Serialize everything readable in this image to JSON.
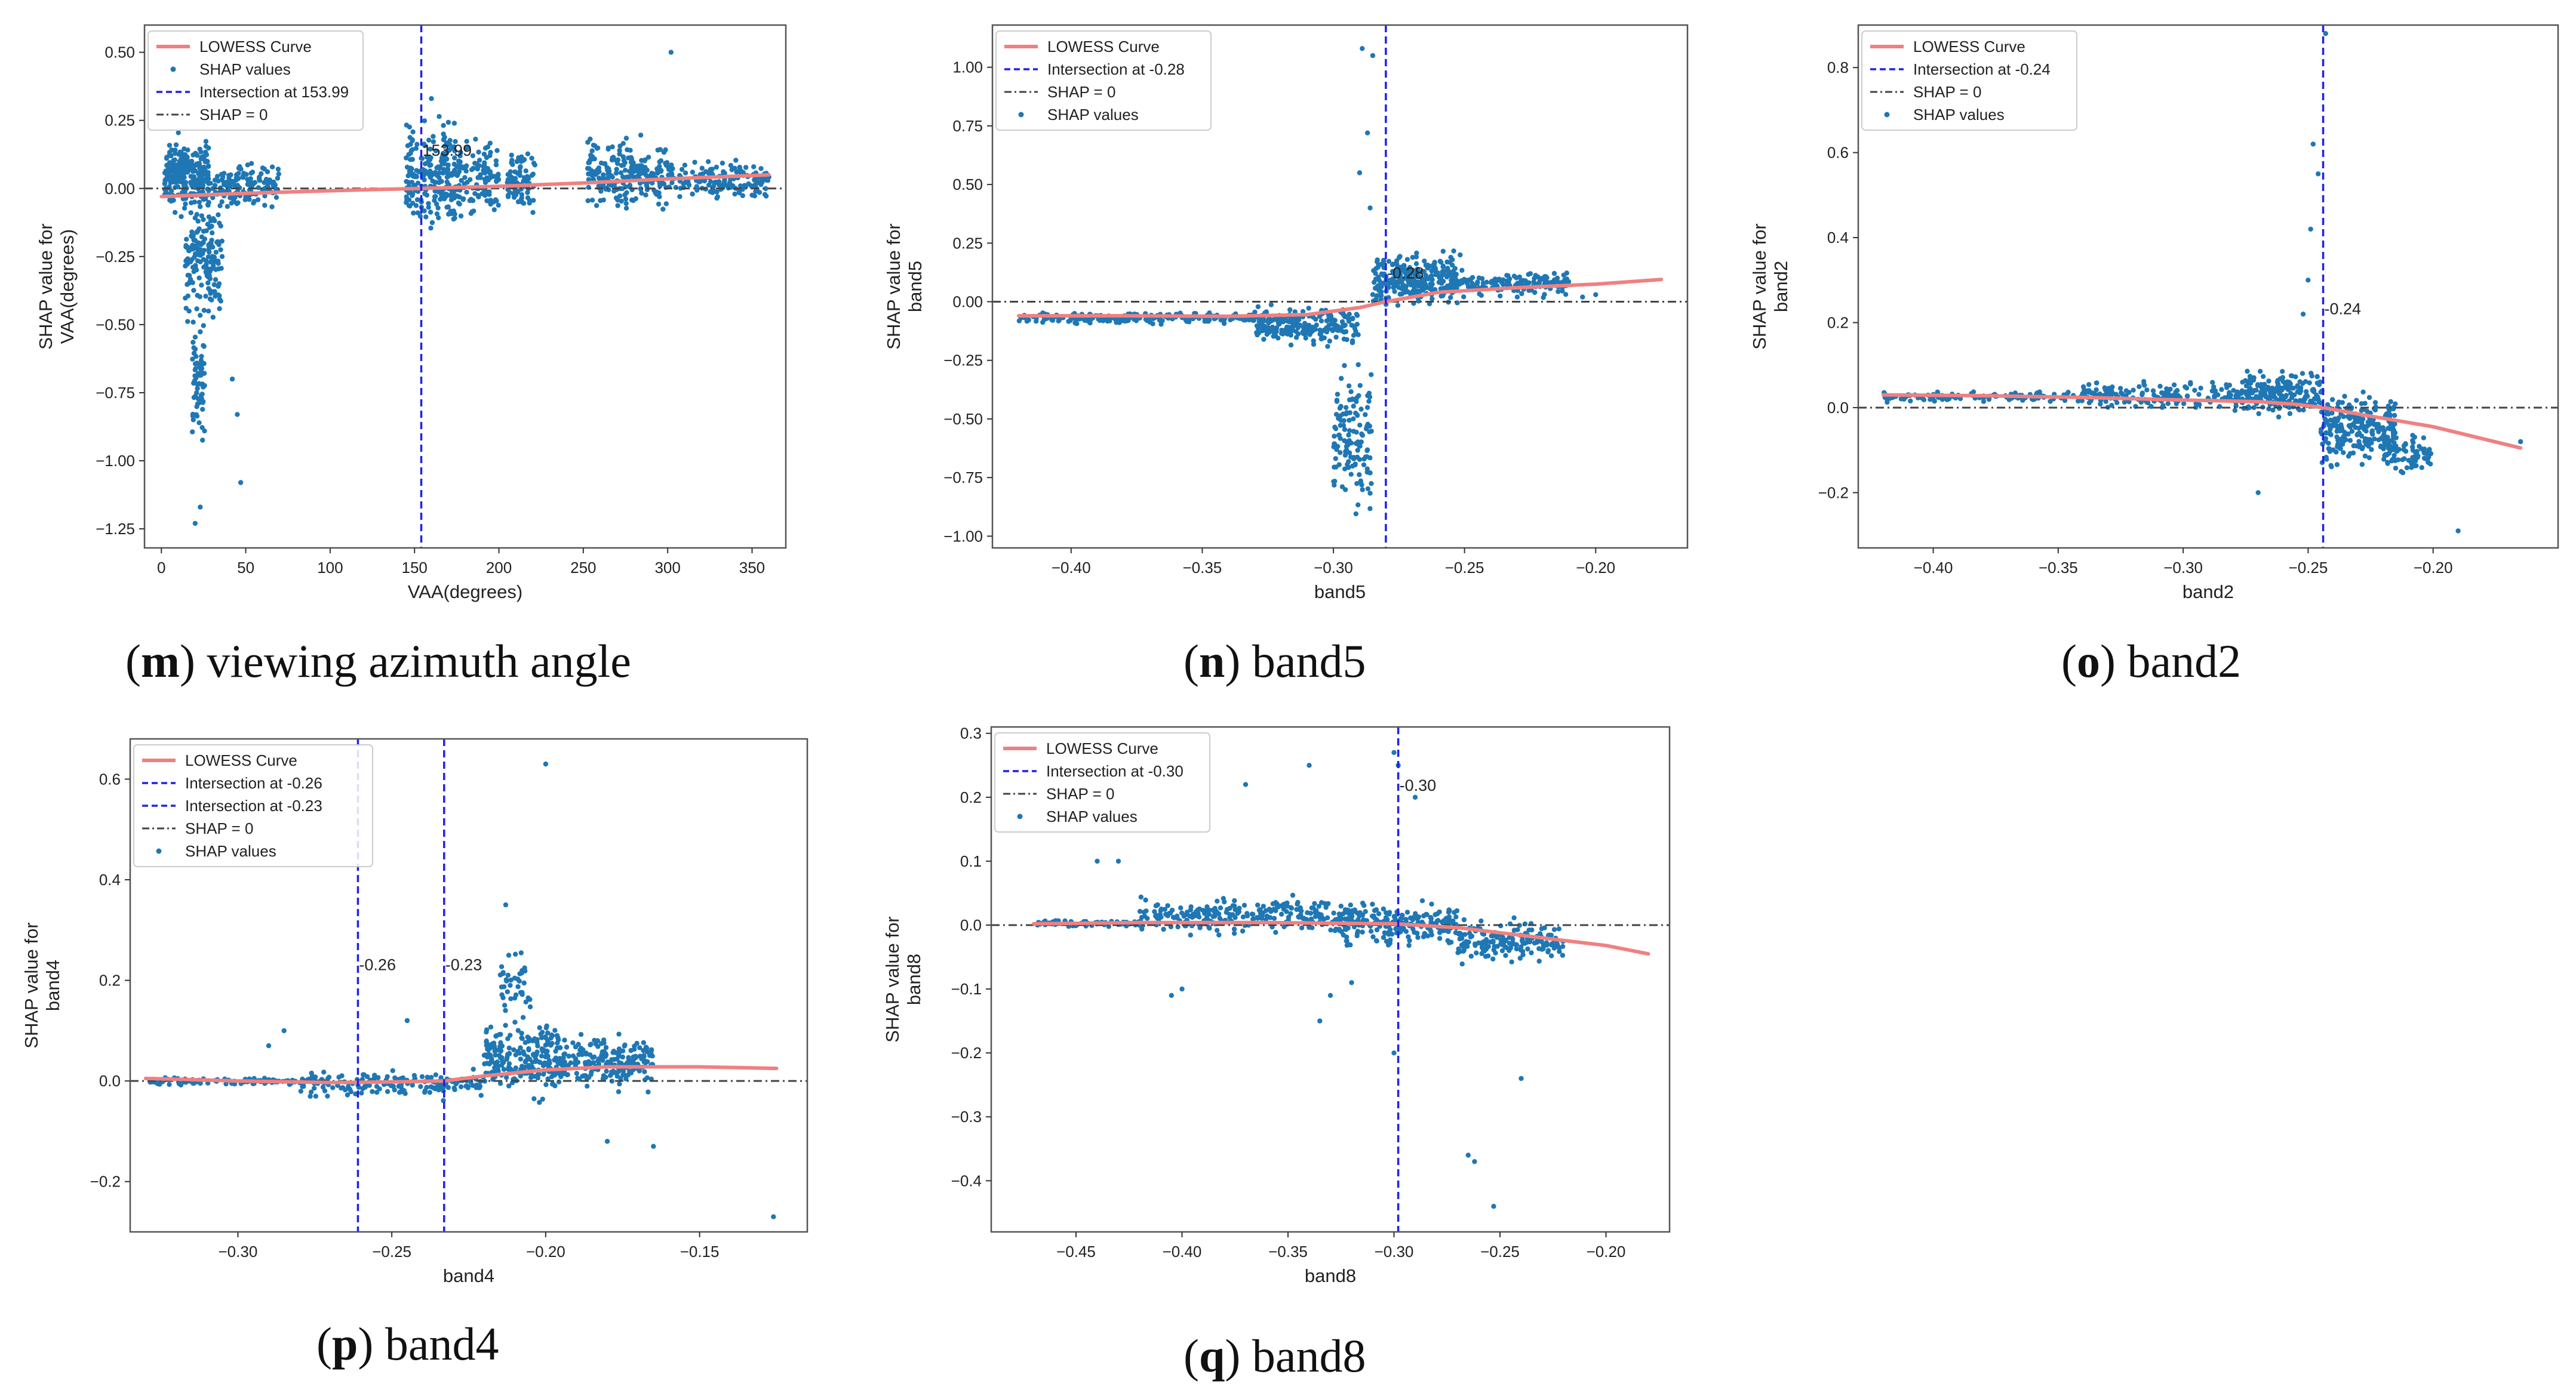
{
  "colors": {
    "points": "#1f77b4",
    "lowess": "#f08080",
    "intersection": "#2020ee",
    "zero_line": "#444444",
    "frame": "#555555"
  },
  "chart_data": [
    {
      "panel": "m",
      "caption_letter": "m",
      "caption_text": ") viewing azimuth angle",
      "type": "scatter",
      "xlabel": "VAA(degrees)",
      "ylabel_lines": [
        "SHAP value for",
        "VAA(degrees)"
      ],
      "xlim": [
        -10,
        370
      ],
      "ylim": [
        -1.32,
        0.6
      ],
      "xticks": [
        0,
        50,
        100,
        150,
        200,
        250,
        300,
        350
      ],
      "xtick_labels": [
        "0",
        "50",
        "100",
        "150",
        "200",
        "250",
        "300",
        "350"
      ],
      "yticks": [
        0.5,
        0.25,
        0.0,
        -0.25,
        -0.5,
        -0.75,
        -1.0,
        -1.25
      ],
      "ytick_labels": [
        "0.50",
        "0.25",
        "0.00",
        "−0.25",
        "−0.50",
        "−0.75",
        "−1.00",
        "−1.25"
      ],
      "legend": [
        {
          "label": "LOWESS Curve",
          "kind": "line"
        },
        {
          "label": "SHAP values",
          "kind": "dot"
        },
        {
          "label": "Intersection at 153.99",
          "kind": "dash"
        },
        {
          "label": "SHAP = 0",
          "kind": "dashdot"
        }
      ],
      "intersections": [
        {
          "x": 153.99,
          "annotation": "153.99",
          "annot_y": 0.12
        }
      ],
      "lowess": {
        "x": [
          0,
          40,
          80,
          120,
          153.99,
          200,
          250,
          300,
          360
        ],
        "y": [
          -0.03,
          -0.02,
          -0.012,
          -0.005,
          0.0,
          0.008,
          0.02,
          0.035,
          0.05
        ]
      },
      "clusters": [
        {
          "xmin": 2,
          "xmax": 28,
          "ymin": -0.12,
          "ymax": 0.22,
          "n": 260
        },
        {
          "xmin": 14,
          "xmax": 36,
          "ymin": -0.55,
          "ymax": 0.05,
          "n": 160
        },
        {
          "xmin": 18,
          "xmax": 26,
          "ymin": -1.0,
          "ymax": -0.4,
          "n": 70
        },
        {
          "xmin": 28,
          "xmax": 70,
          "ymin": -0.1,
          "ymax": 0.12,
          "n": 150
        },
        {
          "xmin": 145,
          "xmax": 175,
          "ymin": -0.22,
          "ymax": 0.3,
          "n": 230
        },
        {
          "xmin": 175,
          "xmax": 200,
          "ymin": -0.15,
          "ymax": 0.22,
          "n": 120
        },
        {
          "xmin": 205,
          "xmax": 222,
          "ymin": -0.12,
          "ymax": 0.18,
          "n": 80
        },
        {
          "xmin": 252,
          "xmax": 300,
          "ymin": -0.12,
          "ymax": 0.22,
          "n": 230
        },
        {
          "xmin": 300,
          "xmax": 360,
          "ymin": -0.05,
          "ymax": 0.12,
          "n": 160
        }
      ],
      "outliers": [
        [
          20,
          -1.23
        ],
        [
          23,
          -1.17
        ],
        [
          47,
          -1.08
        ],
        [
          302,
          0.5
        ],
        [
          36,
          -0.25
        ],
        [
          45,
          -0.83
        ],
        [
          42,
          -0.7
        ],
        [
          160,
          0.33
        ]
      ]
    },
    {
      "panel": "n",
      "caption_letter": "n",
      "caption_text": ") band5",
      "type": "scatter",
      "xlabel": "band5",
      "ylabel_lines": [
        "SHAP value for",
        "band5"
      ],
      "xlim": [
        -0.43,
        -0.165
      ],
      "ylim": [
        -1.05,
        1.18
      ],
      "xticks": [
        -0.4,
        -0.35,
        -0.3,
        -0.25,
        -0.2
      ],
      "xtick_labels": [
        "−0.40",
        "−0.35",
        "−0.30",
        "−0.25",
        "−0.20"
      ],
      "yticks": [
        1.0,
        0.75,
        0.5,
        0.25,
        0.0,
        -0.25,
        -0.5,
        -0.75,
        -1.0
      ],
      "ytick_labels": [
        "1.00",
        "0.75",
        "0.50",
        "0.25",
        "0.00",
        "−0.25",
        "−0.50",
        "−0.75",
        "−1.00"
      ],
      "legend": [
        {
          "label": "LOWESS Curve",
          "kind": "line"
        },
        {
          "label": "Intersection at -0.28",
          "kind": "dash"
        },
        {
          "label": "SHAP = 0",
          "kind": "dashdot"
        },
        {
          "label": "SHAP values",
          "kind": "dot"
        }
      ],
      "intersections": [
        {
          "x": -0.28,
          "annotation": "-0.28",
          "annot_y": 0.1
        }
      ],
      "lowess": {
        "x": [
          -0.42,
          -0.38,
          -0.34,
          -0.31,
          -0.29,
          -0.28,
          -0.26,
          -0.23,
          -0.2,
          -0.175
        ],
        "y": [
          -0.06,
          -0.06,
          -0.062,
          -0.055,
          -0.025,
          0.0,
          0.04,
          0.06,
          0.075,
          0.095
        ]
      },
      "clusters": [
        {
          "xmin": -0.42,
          "xmax": -0.33,
          "ymin": -0.1,
          "ymax": -0.04,
          "n": 220
        },
        {
          "xmin": -0.33,
          "xmax": -0.29,
          "ymin": -0.2,
          "ymax": 0.0,
          "n": 220
        },
        {
          "xmin": -0.3,
          "xmax": -0.285,
          "ymin": -0.95,
          "ymax": -0.2,
          "n": 130
        },
        {
          "xmin": -0.285,
          "xmax": -0.25,
          "ymin": -0.05,
          "ymax": 0.24,
          "n": 280
        },
        {
          "xmin": -0.25,
          "xmax": -0.21,
          "ymin": 0.01,
          "ymax": 0.14,
          "n": 140
        }
      ],
      "outliers": [
        [
          -0.289,
          1.08
        ],
        [
          -0.285,
          1.05
        ],
        [
          -0.287,
          0.72
        ],
        [
          -0.29,
          0.55
        ],
        [
          -0.286,
          0.4
        ],
        [
          -0.205,
          0.02
        ],
        [
          -0.2,
          0.03
        ]
      ]
    },
    {
      "panel": "o",
      "caption_letter": "o",
      "caption_text": ") band2",
      "type": "scatter",
      "xlabel": "band2",
      "ylabel_lines": [
        "SHAP value for",
        "band2"
      ],
      "xlim": [
        -0.43,
        -0.15
      ],
      "ylim": [
        -0.33,
        0.9
      ],
      "xticks": [
        -0.4,
        -0.35,
        -0.3,
        -0.25,
        -0.2
      ],
      "xtick_labels": [
        "−0.40",
        "−0.35",
        "−0.30",
        "−0.25",
        "−0.20"
      ],
      "yticks": [
        0.8,
        0.6,
        0.4,
        0.2,
        0.0,
        -0.2
      ],
      "ytick_labels": [
        "0.8",
        "0.6",
        "0.4",
        "0.2",
        "0.0",
        "−0.2"
      ],
      "legend": [
        {
          "label": "LOWESS Curve",
          "kind": "line"
        },
        {
          "label": "Intersection at -0.24",
          "kind": "dash"
        },
        {
          "label": "SHAP = 0",
          "kind": "dashdot"
        },
        {
          "label": "SHAP values",
          "kind": "dot"
        }
      ],
      "intersections": [
        {
          "x": -0.244,
          "annotation": "-0.24",
          "annot_y": 0.22
        }
      ],
      "lowess": {
        "x": [
          -0.42,
          -0.38,
          -0.34,
          -0.3,
          -0.27,
          -0.255,
          -0.244,
          -0.23,
          -0.2,
          -0.165
        ],
        "y": [
          0.03,
          0.028,
          0.024,
          0.018,
          0.014,
          0.008,
          0.0,
          -0.015,
          -0.045,
          -0.095
        ]
      },
      "clusters": [
        {
          "xmin": -0.42,
          "xmax": -0.34,
          "ymin": 0.01,
          "ymax": 0.04,
          "n": 120
        },
        {
          "xmin": -0.34,
          "xmax": -0.28,
          "ymin": -0.01,
          "ymax": 0.07,
          "n": 160
        },
        {
          "xmin": -0.28,
          "xmax": -0.245,
          "ymin": -0.03,
          "ymax": 0.1,
          "n": 220
        },
        {
          "xmin": -0.245,
          "xmax": -0.215,
          "ymin": -0.16,
          "ymax": 0.06,
          "n": 240
        },
        {
          "xmin": -0.22,
          "xmax": -0.2,
          "ymin": -0.17,
          "ymax": -0.05,
          "n": 80
        }
      ],
      "outliers": [
        [
          -0.248,
          0.62
        ],
        [
          -0.246,
          0.55
        ],
        [
          -0.249,
          0.42
        ],
        [
          -0.25,
          0.3
        ],
        [
          -0.252,
          0.22
        ],
        [
          -0.243,
          0.88
        ],
        [
          -0.19,
          -0.29
        ],
        [
          -0.165,
          -0.08
        ],
        [
          -0.27,
          -0.2
        ]
      ]
    },
    {
      "panel": "p",
      "caption_letter": "p",
      "caption_text": ") band4",
      "type": "scatter",
      "xlabel": "band4",
      "ylabel_lines": [
        "SHAP value for",
        "band4"
      ],
      "xlim": [
        -0.335,
        -0.115
      ],
      "ylim": [
        -0.3,
        0.68
      ],
      "xticks": [
        -0.3,
        -0.25,
        -0.2,
        -0.15
      ],
      "xtick_labels": [
        "−0.30",
        "−0.25",
        "−0.20",
        "−0.15"
      ],
      "yticks": [
        0.6,
        0.4,
        0.2,
        0.0,
        -0.2
      ],
      "ytick_labels": [
        "0.6",
        "0.4",
        "0.2",
        "0.0",
        "−0.2"
      ],
      "legend": [
        {
          "label": "LOWESS Curve",
          "kind": "line"
        },
        {
          "label": "Intersection at -0.26",
          "kind": "dash"
        },
        {
          "label": "Intersection at -0.23",
          "kind": "dash"
        },
        {
          "label": "SHAP = 0",
          "kind": "dashdot"
        },
        {
          "label": "SHAP values",
          "kind": "dot"
        }
      ],
      "intersections": [
        {
          "x": -0.261,
          "annotation": "-0.26",
          "annot_y": 0.22
        },
        {
          "x": -0.233,
          "annotation": "-0.23",
          "annot_y": 0.22
        }
      ],
      "lowess": {
        "x": [
          -0.33,
          -0.3,
          -0.27,
          -0.25,
          -0.233,
          -0.22,
          -0.2,
          -0.18,
          -0.15,
          -0.125
        ],
        "y": [
          0.005,
          0.0,
          -0.003,
          -0.002,
          0.0,
          0.01,
          0.022,
          0.028,
          0.028,
          0.025
        ]
      },
      "clusters": [
        {
          "xmin": -0.33,
          "xmax": -0.27,
          "ymin": -0.01,
          "ymax": 0.01,
          "n": 110
        },
        {
          "xmin": -0.28,
          "xmax": -0.22,
          "ymin": -0.04,
          "ymax": 0.03,
          "n": 160
        },
        {
          "xmin": -0.22,
          "xmax": -0.195,
          "ymin": -0.05,
          "ymax": 0.14,
          "n": 240
        },
        {
          "xmin": -0.195,
          "xmax": -0.165,
          "ymin": -0.03,
          "ymax": 0.1,
          "n": 200
        },
        {
          "xmin": -0.215,
          "xmax": -0.205,
          "ymin": 0.1,
          "ymax": 0.28,
          "n": 40
        }
      ],
      "outliers": [
        [
          -0.2,
          0.63
        ],
        [
          -0.213,
          0.35
        ],
        [
          -0.285,
          0.1
        ],
        [
          -0.29,
          0.07
        ],
        [
          -0.18,
          -0.12
        ],
        [
          -0.126,
          -0.27
        ],
        [
          -0.245,
          0.12
        ],
        [
          -0.165,
          -0.13
        ]
      ]
    },
    {
      "panel": "q",
      "caption_letter": "q",
      "caption_text": ") band8",
      "type": "scatter",
      "xlabel": "band8",
      "ylabel_lines": [
        "SHAP value for",
        "band8"
      ],
      "xlim": [
        -0.49,
        -0.17
      ],
      "ylim": [
        -0.48,
        0.31
      ],
      "xticks": [
        -0.45,
        -0.4,
        -0.35,
        -0.3,
        -0.25,
        -0.2
      ],
      "xtick_labels": [
        "−0.45",
        "−0.40",
        "−0.35",
        "−0.30",
        "−0.25",
        "−0.20"
      ],
      "yticks": [
        0.3,
        0.2,
        0.1,
        0.0,
        -0.1,
        -0.2,
        -0.3,
        -0.4
      ],
      "ytick_labels": [
        "0.3",
        "0.2",
        "0.1",
        "0.0",
        "−0.1",
        "−0.2",
        "−0.3",
        "−0.4"
      ],
      "legend": [
        {
          "label": "LOWESS Curve",
          "kind": "line"
        },
        {
          "label": "Intersection at -0.30",
          "kind": "dash"
        },
        {
          "label": "SHAP = 0",
          "kind": "dashdot"
        },
        {
          "label": "SHAP values",
          "kind": "dot"
        }
      ],
      "intersections": [
        {
          "x": -0.298,
          "annotation": "-0.30",
          "annot_y": 0.21
        }
      ],
      "lowess": {
        "x": [
          -0.47,
          -0.42,
          -0.36,
          -0.3,
          -0.27,
          -0.25,
          -0.22,
          -0.2,
          -0.18
        ],
        "y": [
          0.002,
          0.004,
          0.004,
          0.002,
          -0.004,
          -0.012,
          -0.024,
          -0.032,
          -0.045
        ]
      },
      "clusters": [
        {
          "xmin": -0.47,
          "xmax": -0.42,
          "ymin": -0.005,
          "ymax": 0.01,
          "n": 70
        },
        {
          "xmin": -0.42,
          "xmax": -0.33,
          "ymin": -0.02,
          "ymax": 0.05,
          "n": 230
        },
        {
          "xmin": -0.33,
          "xmax": -0.27,
          "ymin": -0.04,
          "ymax": 0.04,
          "n": 230
        },
        {
          "xmin": -0.27,
          "xmax": -0.22,
          "ymin": -0.07,
          "ymax": 0.02,
          "n": 170
        }
      ],
      "outliers": [
        [
          -0.3,
          0.27
        ],
        [
          -0.298,
          0.25
        ],
        [
          -0.34,
          0.25
        ],
        [
          -0.29,
          0.2
        ],
        [
          -0.37,
          0.22
        ],
        [
          -0.43,
          0.1
        ],
        [
          -0.44,
          0.1
        ],
        [
          -0.4,
          -0.1
        ],
        [
          -0.405,
          -0.11
        ],
        [
          -0.265,
          -0.36
        ],
        [
          -0.262,
          -0.37
        ],
        [
          -0.253,
          -0.44
        ],
        [
          -0.24,
          -0.24
        ],
        [
          -0.3,
          -0.2
        ],
        [
          -0.335,
          -0.15
        ],
        [
          -0.33,
          -0.11
        ],
        [
          -0.32,
          -0.09
        ]
      ]
    }
  ]
}
